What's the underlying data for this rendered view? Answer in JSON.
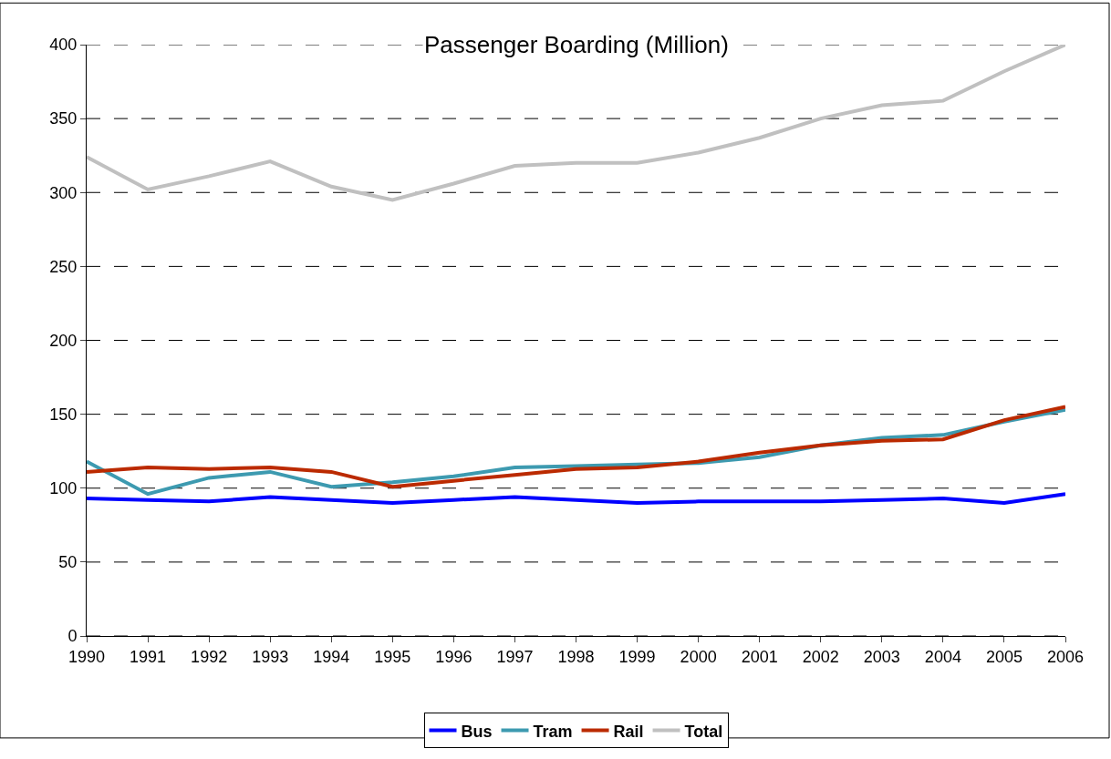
{
  "chart_data": {
    "type": "line",
    "title": "Passenger Boarding (Million)",
    "x": [
      1990,
      1991,
      1992,
      1993,
      1994,
      1995,
      1996,
      1997,
      1998,
      1999,
      2000,
      2001,
      2002,
      2003,
      2004,
      2005,
      2006
    ],
    "xlim": [
      1990,
      2006
    ],
    "xticks": [
      1990,
      1991,
      1992,
      1993,
      1994,
      1995,
      1996,
      1997,
      1998,
      1999,
      2000,
      2001,
      2002,
      2003,
      2004,
      2005,
      2006
    ],
    "ylim": [
      0,
      400
    ],
    "yticks": [
      0,
      50,
      100,
      150,
      200,
      250,
      300,
      350,
      400
    ],
    "grid": "y",
    "legend": "bottom",
    "marker": "none",
    "line_style": "solid",
    "series": [
      {
        "name": "Bus",
        "color": "#0000ff",
        "values": [
          93,
          92,
          91,
          94,
          92,
          90,
          92,
          94,
          92,
          90,
          91,
          91,
          91,
          92,
          93,
          90,
          96
        ]
      },
      {
        "name": "Tram",
        "color": "#3d9ab0",
        "values": [
          118,
          96,
          107,
          111,
          101,
          104,
          108,
          114,
          115,
          116,
          117,
          121,
          129,
          134,
          136,
          145,
          153
        ]
      },
      {
        "name": "Rail",
        "color": "#bb2a00",
        "values": [
          111,
          114,
          113,
          114,
          111,
          101,
          105,
          109,
          113,
          114,
          118,
          124,
          129,
          132,
          133,
          146,
          155
        ]
      },
      {
        "name": "Total",
        "color": "#c0c0c0",
        "values": [
          324,
          302,
          311,
          321,
          304,
          295,
          306,
          318,
          320,
          320,
          327,
          337,
          350,
          359,
          362,
          382,
          400
        ]
      }
    ]
  }
}
